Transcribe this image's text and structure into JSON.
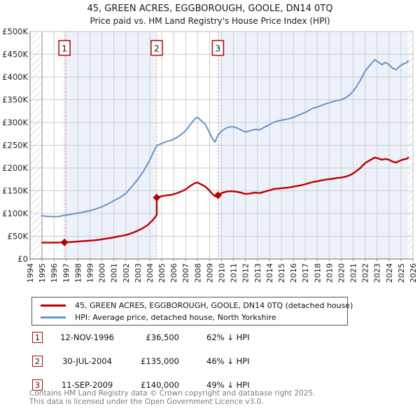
{
  "title": "45, GREEN ACRES, EGGBOROUGH, GOOLE, DN14 0TQ",
  "subtitle": "Price paid vs. HM Land Registry's House Price Index (HPI)",
  "footer": {
    "line1": "Contains HM Land Registry data © Crown copyright and database right 2025.",
    "line2": "This data is licensed under the Open Government Licence v3.0."
  },
  "legend": [
    {
      "name": "price-paid",
      "label": "45, GREEN ACRES, EGGBOROUGH, GOOLE, DN14 0TQ (detached house)",
      "color": "#bb0000"
    },
    {
      "name": "hpi",
      "label": "HPI: Average price, detached house, North Yorkshire",
      "color": "#6693c9"
    }
  ],
  "transactions": [
    {
      "num": "1",
      "date": "12-NOV-1996",
      "price": "£36,500",
      "hpi": "62% ↓ HPI"
    },
    {
      "num": "2",
      "date": "30-JUL-2004",
      "price": "£135,000",
      "hpi": "46% ↓ HPI"
    },
    {
      "num": "3",
      "date": "11-SEP-2009",
      "price": "£140,000",
      "hpi": "49% ↓ HPI"
    }
  ],
  "chart_data": {
    "type": "line",
    "title": "45, GREEN ACRES, EGGBOROUGH, GOOLE, DN14 0TQ",
    "xlabel": "",
    "ylabel": "",
    "xlim": [
      1994,
      2026
    ],
    "ylim": [
      0,
      500
    ],
    "grid": true,
    "x_ticks": [
      1994,
      1995,
      1996,
      1997,
      1998,
      1999,
      2000,
      2001,
      2002,
      2003,
      2004,
      2005,
      2006,
      2007,
      2008,
      2009,
      2010,
      2011,
      2012,
      2013,
      2014,
      2015,
      2016,
      2017,
      2018,
      2019,
      2020,
      2021,
      2022,
      2023,
      2024,
      2025,
      2026
    ],
    "y_ticks": [
      {
        "v": 0,
        "label": "£0"
      },
      {
        "v": 50,
        "label": "£50K"
      },
      {
        "v": 100,
        "label": "£100K"
      },
      {
        "v": 150,
        "label": "£150K"
      },
      {
        "v": 200,
        "label": "£200K"
      },
      {
        "v": 250,
        "label": "£250K"
      },
      {
        "v": 300,
        "label": "£300K"
      },
      {
        "v": 350,
        "label": "£350K"
      },
      {
        "v": 400,
        "label": "£400K"
      },
      {
        "v": 450,
        "label": "£450K"
      },
      {
        "v": 500,
        "label": "£500K"
      }
    ],
    "colors": {
      "price_line": "#bb0000",
      "hpi_line": "#6693c9",
      "sale_vline": "#f58a8a",
      "band": "#edf2fa",
      "grid": "#cccccc",
      "axis": "#888888",
      "hatch": "#bbbbbb"
    },
    "bands": [
      [
        1996.87,
        2004.58
      ],
      [
        2009.7,
        2025.6
      ]
    ],
    "hatch_regions": [
      [
        1994,
        1995
      ],
      [
        2025.6,
        2026
      ]
    ],
    "sale_lines": [
      {
        "x": 1996.87,
        "label": "1"
      },
      {
        "x": 2004.58,
        "label": "2"
      },
      {
        "x": 2009.7,
        "label": "3"
      }
    ],
    "markers": [
      [
        1996.87,
        36.5
      ],
      [
        2004.58,
        135
      ],
      [
        2009.7,
        140
      ]
    ],
    "series": [
      {
        "name": "hpi",
        "color": "#6693c9",
        "width": 2,
        "points": [
          [
            1995.0,
            95
          ],
          [
            1995.3,
            94
          ],
          [
            1995.6,
            93.5
          ],
          [
            1996.0,
            93
          ],
          [
            1996.4,
            93.5
          ],
          [
            1996.87,
            96
          ],
          [
            1997.3,
            97.5
          ],
          [
            1997.8,
            100
          ],
          [
            1998.2,
            102
          ],
          [
            1998.6,
            104
          ],
          [
            1999.0,
            106
          ],
          [
            1999.5,
            110
          ],
          [
            2000.0,
            115
          ],
          [
            2000.5,
            121
          ],
          [
            2001.0,
            128
          ],
          [
            2001.5,
            135
          ],
          [
            2002.0,
            144
          ],
          [
            2002.5,
            159
          ],
          [
            2003.0,
            175
          ],
          [
            2003.5,
            194
          ],
          [
            2004.0,
            217
          ],
          [
            2004.3,
            235
          ],
          [
            2004.58,
            249
          ],
          [
            2005.0,
            254
          ],
          [
            2005.4,
            258
          ],
          [
            2005.8,
            261
          ],
          [
            2006.2,
            266
          ],
          [
            2006.6,
            273
          ],
          [
            2007.0,
            282
          ],
          [
            2007.4,
            296
          ],
          [
            2007.8,
            309
          ],
          [
            2008.0,
            311
          ],
          [
            2008.3,
            304
          ],
          [
            2008.6,
            297
          ],
          [
            2008.9,
            283
          ],
          [
            2009.2,
            266
          ],
          [
            2009.45,
            257
          ],
          [
            2009.7,
            272
          ],
          [
            2010.0,
            281
          ],
          [
            2010.4,
            288
          ],
          [
            2010.8,
            291
          ],
          [
            2011.2,
            289
          ],
          [
            2011.6,
            284
          ],
          [
            2012.0,
            279
          ],
          [
            2012.4,
            282
          ],
          [
            2012.8,
            285
          ],
          [
            2013.2,
            284
          ],
          [
            2013.6,
            290
          ],
          [
            2014.0,
            295
          ],
          [
            2014.4,
            301
          ],
          [
            2014.8,
            304
          ],
          [
            2015.2,
            306
          ],
          [
            2015.6,
            308
          ],
          [
            2016.0,
            311
          ],
          [
            2016.4,
            316
          ],
          [
            2016.8,
            320
          ],
          [
            2017.2,
            325
          ],
          [
            2017.6,
            331
          ],
          [
            2018.0,
            334
          ],
          [
            2018.4,
            338
          ],
          [
            2018.8,
            342
          ],
          [
            2019.2,
            345
          ],
          [
            2019.6,
            348
          ],
          [
            2020.0,
            350
          ],
          [
            2020.4,
            355
          ],
          [
            2020.8,
            363
          ],
          [
            2021.2,
            376
          ],
          [
            2021.6,
            393
          ],
          [
            2022.0,
            413
          ],
          [
            2022.4,
            426
          ],
          [
            2022.8,
            438
          ],
          [
            2023.1,
            433
          ],
          [
            2023.4,
            427
          ],
          [
            2023.7,
            432
          ],
          [
            2024.0,
            427
          ],
          [
            2024.3,
            419
          ],
          [
            2024.6,
            416
          ],
          [
            2024.9,
            424
          ],
          [
            2025.2,
            429
          ],
          [
            2025.45,
            431
          ],
          [
            2025.6,
            436
          ]
        ]
      },
      {
        "name": "price-paid",
        "color": "#bb0000",
        "width": 2.4,
        "points": [
          [
            1995.0,
            36
          ],
          [
            1995.5,
            36
          ],
          [
            1996.0,
            36
          ],
          [
            1996.5,
            36.3
          ],
          [
            1996.87,
            36.5
          ],
          [
            1997.3,
            37
          ],
          [
            1997.8,
            38
          ],
          [
            1998.3,
            39
          ],
          [
            1998.8,
            40
          ],
          [
            1999.3,
            41
          ],
          [
            1999.8,
            42.5
          ],
          [
            2000.3,
            44.5
          ],
          [
            2000.8,
            46.5
          ],
          [
            2001.3,
            49
          ],
          [
            2001.8,
            51.5
          ],
          [
            2002.3,
            55
          ],
          [
            2002.8,
            60
          ],
          [
            2003.3,
            66
          ],
          [
            2003.8,
            74
          ],
          [
            2004.2,
            84
          ],
          [
            2004.45,
            92
          ],
          [
            2004.58,
            97
          ],
          [
            2004.58,
            135
          ],
          [
            2005.0,
            138
          ],
          [
            2005.4,
            140
          ],
          [
            2005.8,
            141
          ],
          [
            2006.2,
            144
          ],
          [
            2006.6,
            148
          ],
          [
            2007.0,
            153
          ],
          [
            2007.4,
            161
          ],
          [
            2007.8,
            167
          ],
          [
            2008.0,
            168
          ],
          [
            2008.3,
            164
          ],
          [
            2008.6,
            160
          ],
          [
            2008.9,
            153
          ],
          [
            2009.2,
            144
          ],
          [
            2009.45,
            138
          ],
          [
            2009.7,
            140
          ],
          [
            2010.0,
            145
          ],
          [
            2010.4,
            148
          ],
          [
            2010.8,
            149
          ],
          [
            2011.2,
            148
          ],
          [
            2011.6,
            146
          ],
          [
            2012.0,
            143
          ],
          [
            2012.4,
            144
          ],
          [
            2012.8,
            146
          ],
          [
            2013.2,
            145
          ],
          [
            2013.6,
            148
          ],
          [
            2014.0,
            151
          ],
          [
            2014.4,
            154
          ],
          [
            2014.8,
            155
          ],
          [
            2015.2,
            156
          ],
          [
            2015.6,
            157
          ],
          [
            2016.0,
            159
          ],
          [
            2016.4,
            161
          ],
          [
            2016.8,
            163
          ],
          [
            2017.2,
            166
          ],
          [
            2017.6,
            169
          ],
          [
            2018.0,
            171
          ],
          [
            2018.4,
            173
          ],
          [
            2018.8,
            175
          ],
          [
            2019.2,
            176
          ],
          [
            2019.6,
            178
          ],
          [
            2020.0,
            179
          ],
          [
            2020.4,
            181
          ],
          [
            2020.8,
            185
          ],
          [
            2021.2,
            192
          ],
          [
            2021.6,
            200
          ],
          [
            2022.0,
            211
          ],
          [
            2022.4,
            217
          ],
          [
            2022.8,
            223
          ],
          [
            2023.1,
            221
          ],
          [
            2023.4,
            218
          ],
          [
            2023.7,
            220
          ],
          [
            2024.0,
            218
          ],
          [
            2024.3,
            214
          ],
          [
            2024.6,
            212
          ],
          [
            2024.9,
            216
          ],
          [
            2025.2,
            219
          ],
          [
            2025.45,
            220
          ],
          [
            2025.6,
            223
          ]
        ]
      }
    ]
  }
}
